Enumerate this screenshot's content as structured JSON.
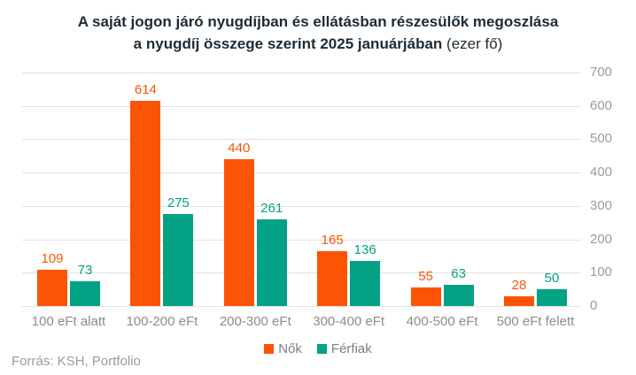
{
  "title": {
    "line1": "A saját jogon járó nyugdíjban és ellátásban részesülők megoszlása",
    "line2_bold": "a nyugdíj összege szerint 2025 januárjában",
    "line2_suffix": "(ezer fő)"
  },
  "footer": {
    "source": "Forrás: KSH, Portfolio"
  },
  "colors": {
    "women": "#fb5404",
    "men": "#04a284",
    "title": "#1d2a33",
    "grid": "#e3e3e3",
    "axis_text": "#9b9b9b",
    "category_text": "#8c8c8c",
    "legend_text": "#7f7f7f",
    "background": "#ffffff"
  },
  "chart_data": {
    "type": "bar",
    "title": "A saját jogon járó nyugdíjban és ellátásban részesülők megoszlása a nyugdíj összege szerint 2025 januárjában (ezer fő)",
    "categories": [
      "100 eFt alatt",
      "100-200 eFt",
      "200-300 eFt",
      "300-400 eFt",
      "400-500 eFt",
      "500 eFt felett"
    ],
    "series": [
      {
        "name": "Nők",
        "color": "#fb5404",
        "values": [
          109,
          614,
          440,
          165,
          55,
          28
        ]
      },
      {
        "name": "Férfiak",
        "color": "#04a284",
        "values": [
          73,
          275,
          261,
          136,
          63,
          50
        ]
      }
    ],
    "xlabel": "",
    "ylabel": "",
    "unit": "ezer fő",
    "ylim": [
      0,
      700
    ],
    "yticks": [
      0,
      100,
      200,
      300,
      400,
      500,
      600,
      700
    ],
    "y_axis_side": "right",
    "grid": true,
    "value_labels": true,
    "legend_position": "bottom",
    "source": "Forrás: KSH, Portfolio"
  }
}
